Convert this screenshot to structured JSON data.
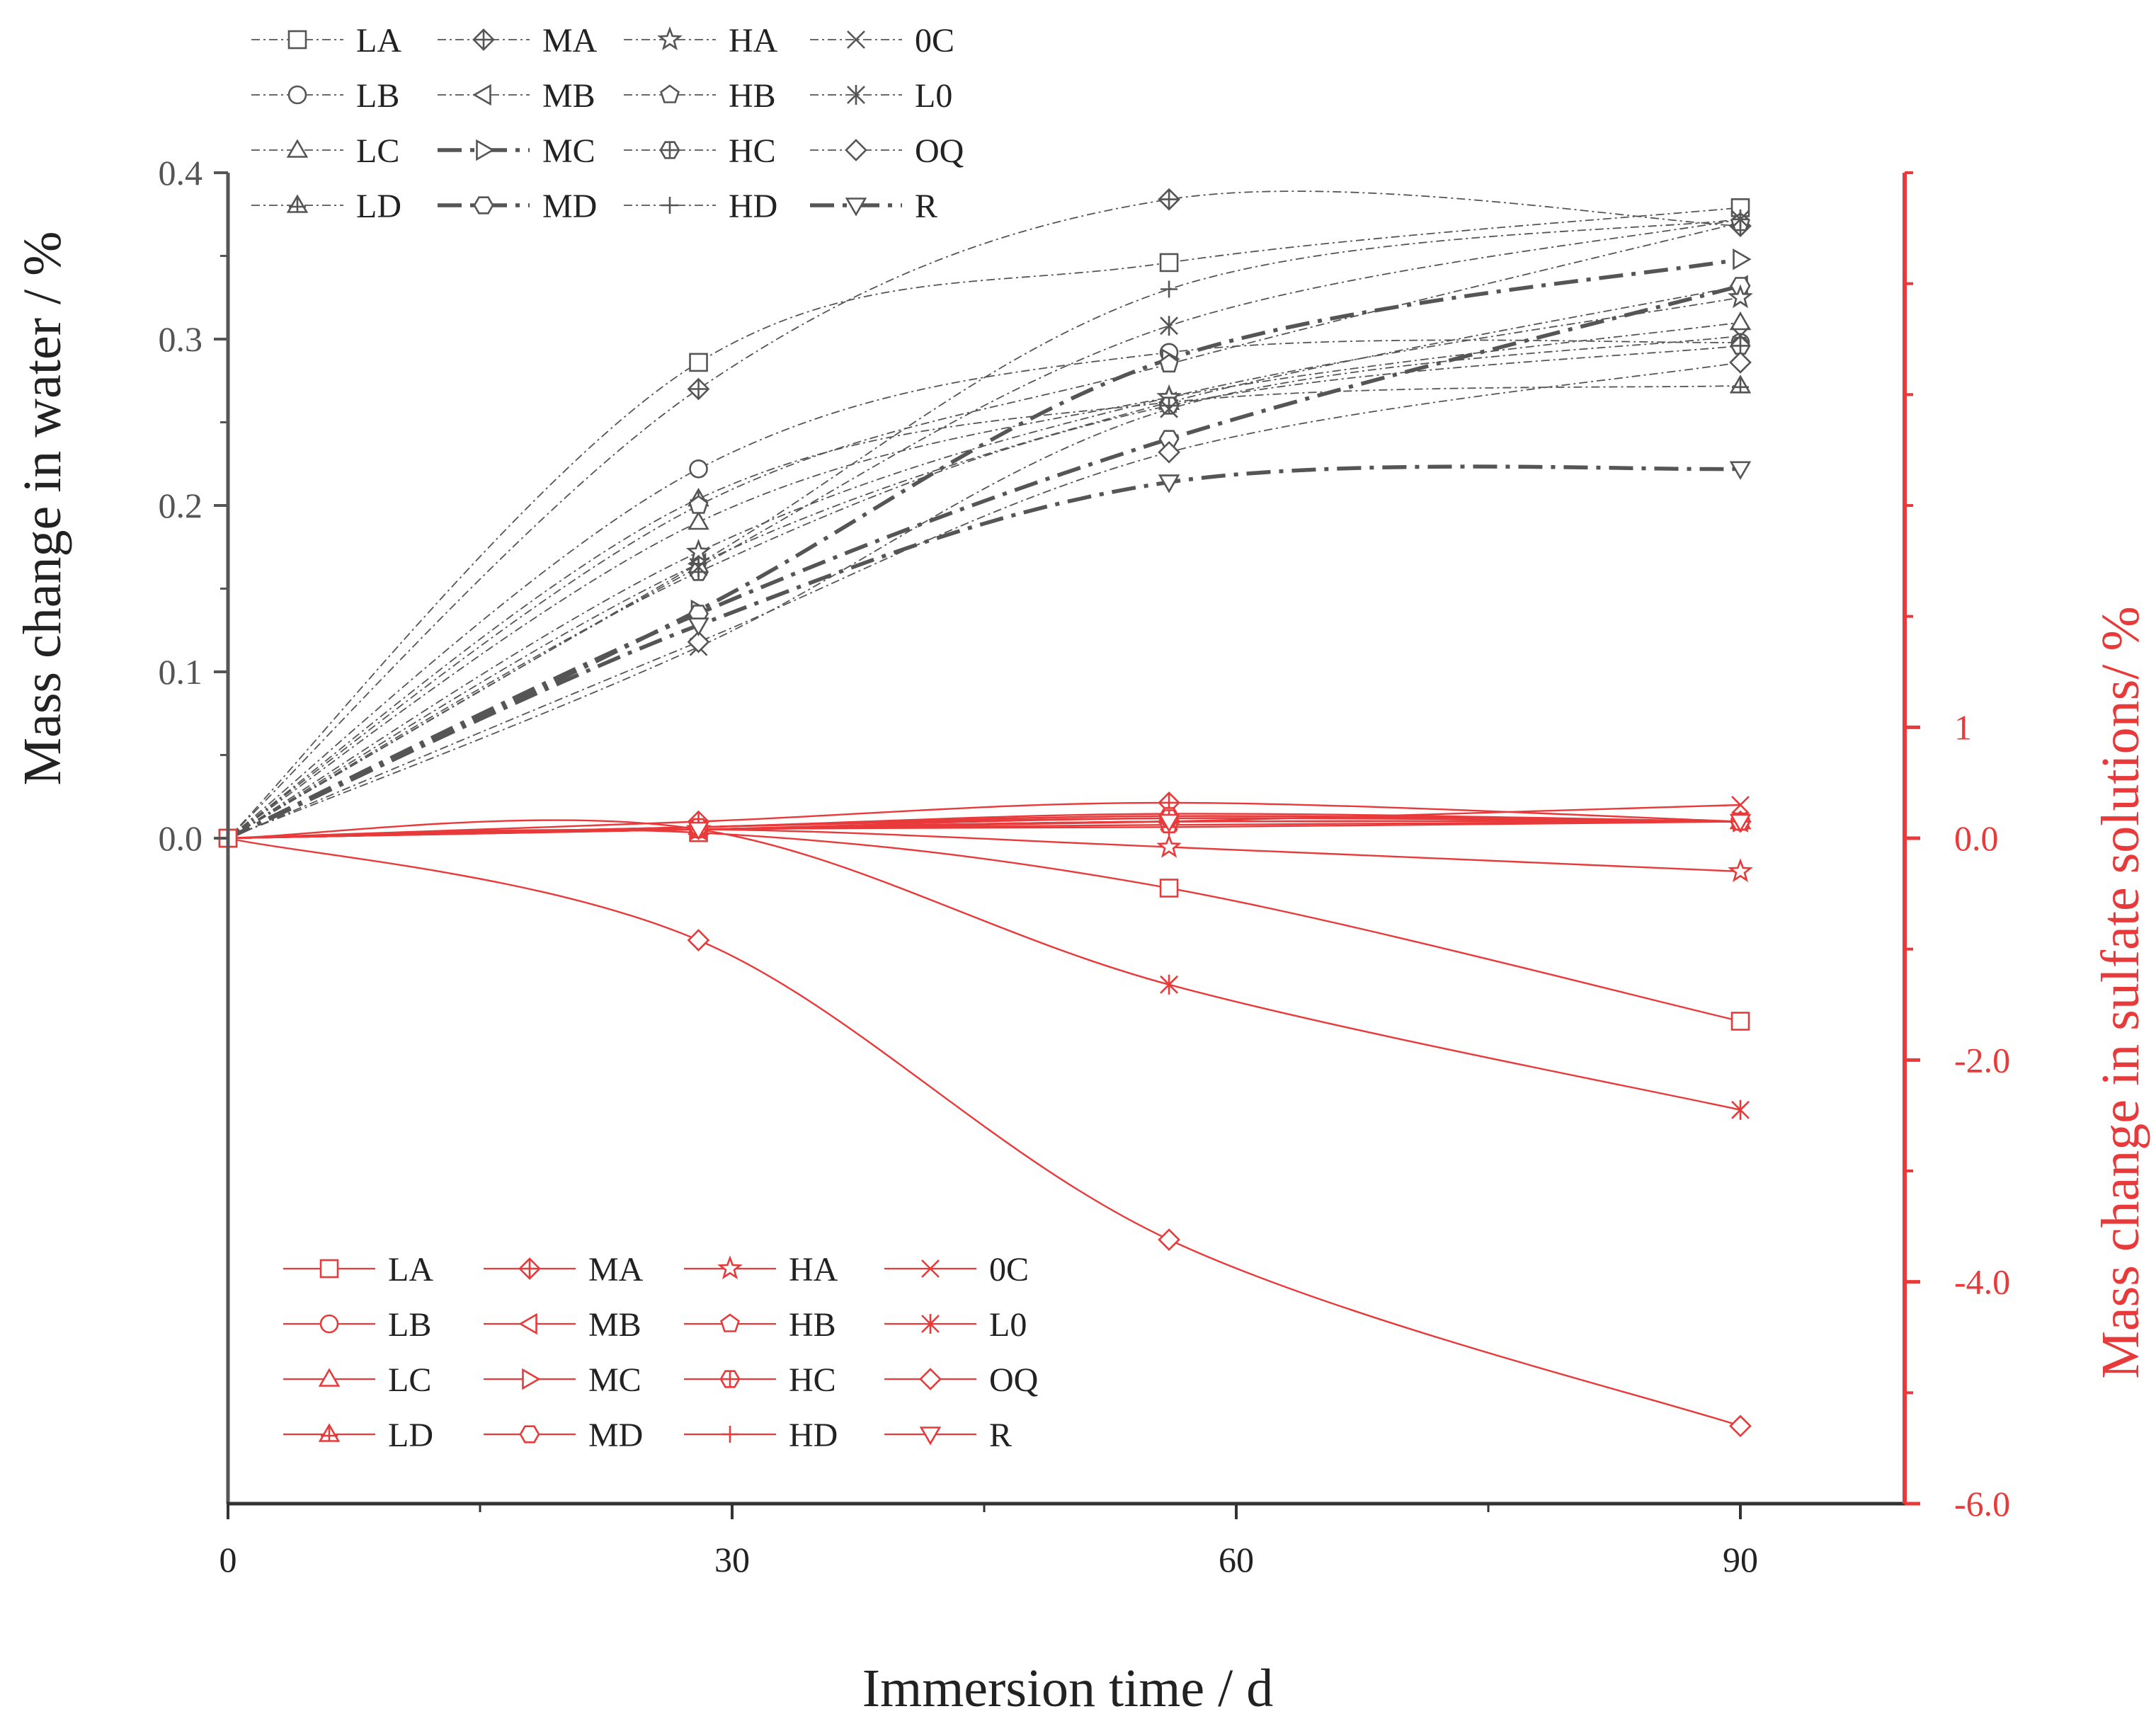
{
  "chart_data": {
    "type": "line",
    "title": "",
    "xlabel": "Immersion time / d",
    "ylabel_left": "Mass change in water / %",
    "ylabel_right": "Mass change in sulfate solutions/ %",
    "xlim": [
      0,
      100
    ],
    "x_ticks": [
      0,
      30,
      60,
      90
    ],
    "y_left_lim": [
      -0.4,
      0.4
    ],
    "y_left_ticks": [
      0.0,
      0.1,
      0.2,
      0.3,
      0.4
    ],
    "y_left_tick_labels": [
      "0.0",
      "0.1",
      "0.2",
      "0.3",
      "0.4"
    ],
    "y_right_lim": [
      -6.0,
      6.0
    ],
    "y_right_ticks": [
      -6.0,
      -4.0,
      -2.0,
      0.0,
      1
    ],
    "y_right_tick_labels": [
      "-6.0",
      "-4.0",
      "-2.0",
      "0.0",
      "1"
    ],
    "x": [
      0,
      28,
      56,
      90
    ],
    "colors": {
      "water": "#555555",
      "sulfate": "#e83a3a"
    },
    "water_series": [
      {
        "name": "LA",
        "marker": "square",
        "values": [
          0,
          0.286,
          0.346,
          0.379
        ]
      },
      {
        "name": "LB",
        "marker": "circle",
        "values": [
          0,
          0.222,
          0.292,
          0.298
        ]
      },
      {
        "name": "LC",
        "marker": "triangle-up",
        "values": [
          0,
          0.19,
          0.265,
          0.31
        ]
      },
      {
        "name": "LD",
        "marker": "triangle-up-cross",
        "values": [
          0,
          0.204,
          0.262,
          0.272
        ]
      },
      {
        "name": "MA",
        "marker": "diamond-cross",
        "values": [
          0,
          0.27,
          0.384,
          0.368
        ]
      },
      {
        "name": "MB",
        "marker": "triangle-left",
        "values": [
          0,
          0.165,
          0.262,
          0.332
        ]
      },
      {
        "name": "MC",
        "marker": "triangle-right",
        "values": [
          0,
          0.137,
          0.288,
          0.348
        ]
      },
      {
        "name": "MD",
        "marker": "hexagon",
        "values": [
          0,
          0.135,
          0.24,
          0.332
        ]
      },
      {
        "name": "HA",
        "marker": "star",
        "values": [
          0,
          0.172,
          0.265,
          0.325
        ]
      },
      {
        "name": "HB",
        "marker": "pentagon",
        "values": [
          0,
          0.2,
          0.285,
          0.37
        ]
      },
      {
        "name": "HC",
        "marker": "hexagon-cross",
        "values": [
          0,
          0.16,
          0.26,
          0.296
        ]
      },
      {
        "name": "HD",
        "marker": "plus",
        "values": [
          0,
          0.165,
          0.33,
          0.372
        ]
      },
      {
        "name": "0C",
        "marker": "x",
        "values": [
          0,
          0.115,
          0.258,
          0.302
        ]
      },
      {
        "name": "L0",
        "marker": "asterisk",
        "values": [
          0,
          0.163,
          0.308,
          0.372
        ]
      },
      {
        "name": "OQ",
        "marker": "diamond",
        "values": [
          0,
          0.118,
          0.232,
          0.286
        ]
      },
      {
        "name": "R",
        "marker": "triangle-down",
        "values": [
          0,
          0.128,
          0.214,
          0.222
        ]
      }
    ],
    "sulfate_series": [
      {
        "name": "LA",
        "marker": "square",
        "values": [
          0,
          0.05,
          -0.45,
          -1.65
        ]
      },
      {
        "name": "LB",
        "marker": "circle",
        "values": [
          0,
          0.08,
          0.18,
          0.15
        ]
      },
      {
        "name": "LC",
        "marker": "triangle-up",
        "values": [
          0,
          0.1,
          0.22,
          0.15
        ]
      },
      {
        "name": "LD",
        "marker": "triangle-up-cross",
        "values": [
          0,
          0.1,
          0.2,
          0.15
        ]
      },
      {
        "name": "MA",
        "marker": "diamond-cross",
        "values": [
          0,
          0.15,
          0.32,
          0.15
        ]
      },
      {
        "name": "MB",
        "marker": "triangle-left",
        "values": [
          0,
          0.08,
          0.15,
          0.15
        ]
      },
      {
        "name": "MC",
        "marker": "triangle-right",
        "values": [
          0,
          0.08,
          0.15,
          0.15
        ]
      },
      {
        "name": "MD",
        "marker": "hexagon",
        "values": [
          0,
          0.1,
          0.2,
          0.15
        ]
      },
      {
        "name": "HA",
        "marker": "star",
        "values": [
          0,
          0.08,
          -0.08,
          -0.3
        ]
      },
      {
        "name": "HB",
        "marker": "pentagon",
        "values": [
          0,
          0.08,
          0.12,
          0.15
        ]
      },
      {
        "name": "HC",
        "marker": "hexagon-cross",
        "values": [
          0,
          0.1,
          0.18,
          0.15
        ]
      },
      {
        "name": "HD",
        "marker": "plus",
        "values": [
          0,
          0.08,
          0.1,
          0.15
        ]
      },
      {
        "name": "0C",
        "marker": "x",
        "values": [
          0,
          0.08,
          0.15,
          0.3
        ]
      },
      {
        "name": "L0",
        "marker": "asterisk",
        "values": [
          0,
          0.08,
          -1.32,
          -2.45
        ]
      },
      {
        "name": "OQ",
        "marker": "diamond",
        "values": [
          0,
          -0.92,
          -3.62,
          -5.3
        ]
      },
      {
        "name": "R",
        "marker": "triangle-down",
        "values": [
          0,
          0.08,
          0.15,
          0.15
        ]
      }
    ]
  }
}
